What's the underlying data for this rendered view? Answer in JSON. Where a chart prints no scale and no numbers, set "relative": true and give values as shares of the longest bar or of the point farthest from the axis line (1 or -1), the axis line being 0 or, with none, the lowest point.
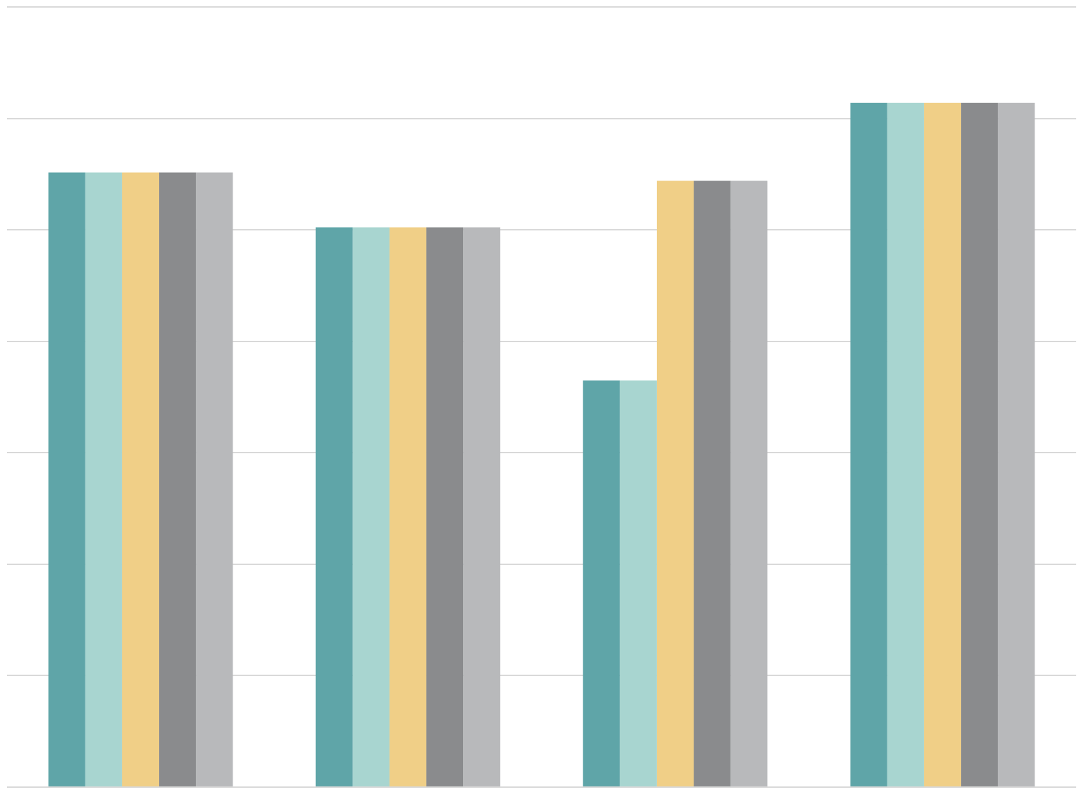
{
  "chart_data": {
    "type": "bar",
    "relative": true,
    "grid": "y",
    "legend": false,
    "categories": [
      null,
      null,
      null,
      null
    ],
    "series": [
      {
        "color": "#5fa5a8",
        "values": [
          0.898,
          0.818,
          0.594,
          1
        ]
      },
      {
        "color": "#a8d5d0",
        "values": [
          0.898,
          0.818,
          0.594,
          1
        ]
      },
      {
        "color": "#f0cf87",
        "values": [
          0.898,
          0.818,
          0.886,
          1
        ]
      },
      {
        "color": "#8a8b8d",
        "values": [
          0.898,
          0.818,
          0.886,
          1
        ]
      },
      {
        "color": "#b8b9bb",
        "values": [
          0.898,
          0.818,
          0.886,
          1
        ]
      }
    ]
  }
}
